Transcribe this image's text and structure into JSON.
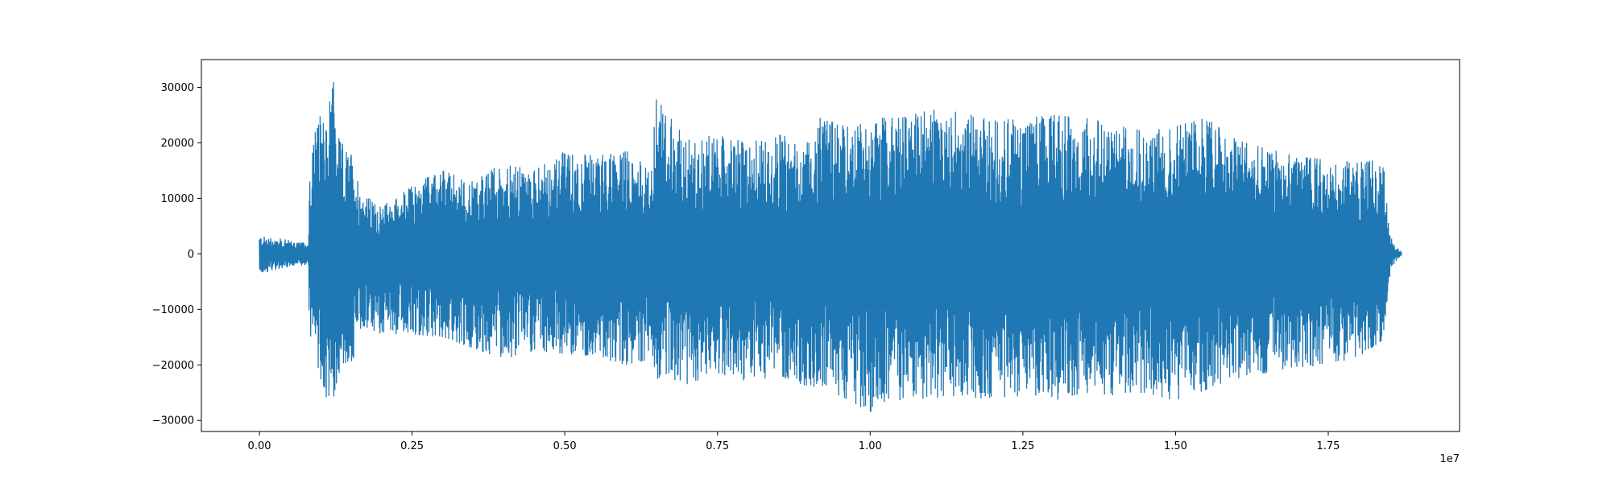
{
  "chart_data": {
    "type": "line",
    "title": "",
    "xlabel": "",
    "ylabel": "",
    "x_offset_label": "1e7",
    "xlim": [
      -0.095,
      1.965
    ],
    "ylim": [
      -32000,
      35000
    ],
    "x_ticks": [
      0.0,
      0.25,
      0.5,
      0.75,
      1.0,
      1.25,
      1.5,
      1.75
    ],
    "x_tick_labels": [
      "0.00",
      "0.25",
      "0.50",
      "0.75",
      "1.00",
      "1.25",
      "1.50",
      "1.75"
    ],
    "y_ticks": [
      -30000,
      -20000,
      -10000,
      0,
      10000,
      20000,
      30000
    ],
    "y_tick_labels": [
      "−30000",
      "−20000",
      "−10000",
      "0",
      "10000",
      "20000",
      "30000"
    ],
    "grid": false,
    "legend": "none",
    "line_color": "#1f77b4",
    "series": [
      {
        "x_unit": "x1e7 samples",
        "envelope_x": [
          0.0,
          0.02,
          0.06,
          0.08,
          0.082,
          0.09,
          0.1,
          0.11,
          0.12,
          0.13,
          0.15,
          0.17,
          0.2,
          0.25,
          0.3,
          0.35,
          0.4,
          0.45,
          0.5,
          0.55,
          0.6,
          0.64,
          0.65,
          0.7,
          0.75,
          0.8,
          0.85,
          0.9,
          0.92,
          0.95,
          1.0,
          1.05,
          1.1,
          1.15,
          1.2,
          1.25,
          1.3,
          1.35,
          1.4,
          1.45,
          1.5,
          1.55,
          1.6,
          1.65,
          1.7,
          1.75,
          1.8,
          1.84,
          1.85,
          1.86,
          1.87
        ],
        "envelope_upper": [
          3300,
          3000,
          2300,
          1900,
          16000,
          21500,
          25000,
          22000,
          32500,
          21000,
          18000,
          11000,
          8500,
          12500,
          15000,
          13000,
          16500,
          15000,
          18500,
          18000,
          19000,
          15000,
          28000,
          20500,
          21500,
          20000,
          21500,
          20000,
          25000,
          23000,
          24500,
          24500,
          26000,
          25500,
          24000,
          24500,
          25000,
          24500,
          23500,
          22000,
          23000,
          24500,
          20500,
          19000,
          17500,
          17000,
          16500,
          17000,
          3500,
          1500,
          400
        ],
        "envelope_lower": [
          -3700,
          -3000,
          -2300,
          -1900,
          -16000,
          -19500,
          -23000,
          -26000,
          -29000,
          -21500,
          -20000,
          -13000,
          -14500,
          -14500,
          -15000,
          -17000,
          -19000,
          -17500,
          -18000,
          -18500,
          -20000,
          -19000,
          -22500,
          -23500,
          -21500,
          -23000,
          -22000,
          -24000,
          -26000,
          -25500,
          -28500,
          -26500,
          -26000,
          -25500,
          -26500,
          -25500,
          -26500,
          -25000,
          -25500,
          -25000,
          -26500,
          -24500,
          -23000,
          -21500,
          -20500,
          -20000,
          -18500,
          -15500,
          -4500,
          -1500,
          -400
        ]
      }
    ]
  }
}
